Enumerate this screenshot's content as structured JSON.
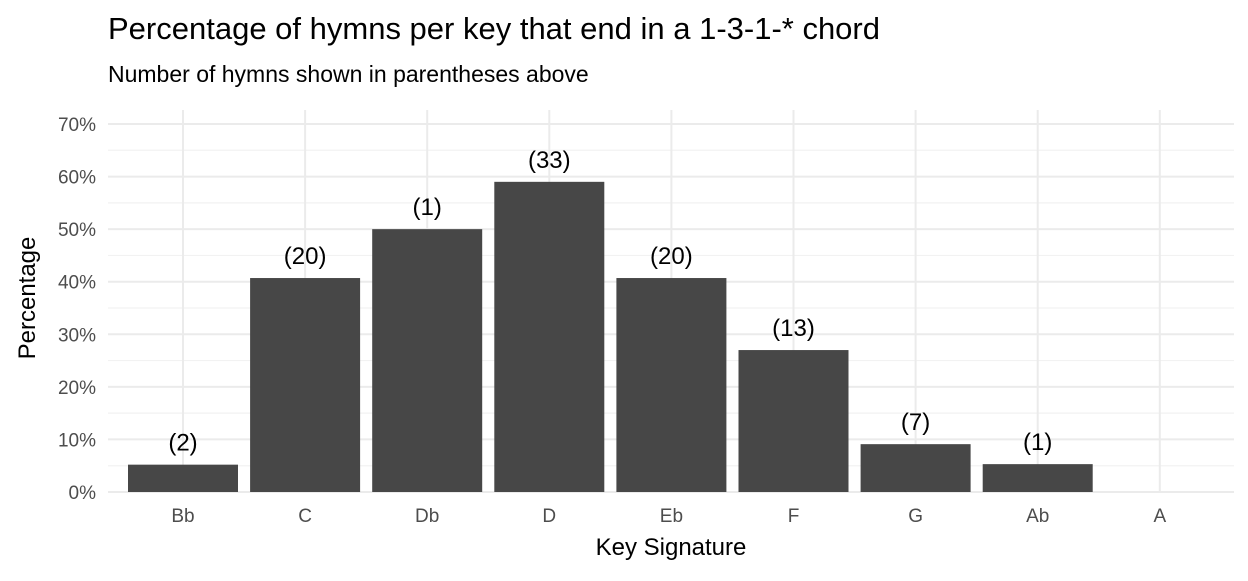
{
  "chart_data": {
    "type": "bar",
    "title": "Percentage of hymns per key that end in a 1-3-1-* chord",
    "subtitle": "Number of hymns shown in parentheses above",
    "xlabel": "Key Signature",
    "ylabel": "Percentage",
    "categories": [
      "Bb",
      "C",
      "Db",
      "D",
      "Eb",
      "F",
      "G",
      "Ab",
      "A"
    ],
    "values": [
      5.2,
      40.7,
      50.0,
      59.0,
      40.7,
      27.0,
      9.1,
      5.3,
      0
    ],
    "data_labels": [
      "(2)",
      "(20)",
      "(1)",
      "(33)",
      "(20)",
      "(13)",
      "(7)",
      "(1)",
      ""
    ],
    "ylim": [
      0,
      70
    ],
    "y_ticks": [
      0,
      10,
      20,
      30,
      40,
      50,
      60,
      70
    ],
    "y_tick_labels": [
      "0%",
      "10%",
      "20%",
      "30%",
      "40%",
      "50%",
      "60%",
      "70%"
    ],
    "grid": true,
    "legend": "none",
    "bar_color": "#474747",
    "grid_color": "#ebebeb"
  }
}
